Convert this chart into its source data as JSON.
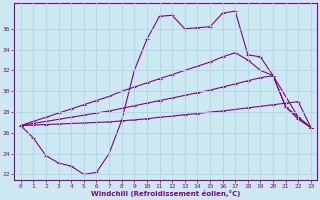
{
  "xlabel": "Windchill (Refroidissement éolien,°C)",
  "bg_color": "#cce8f0",
  "grid_color": "#b0d8e8",
  "line_color": "#880088",
  "xlim": [
    -0.5,
    23.5
  ],
  "ylim": [
    21.5,
    38.5
  ],
  "xticks": [
    0,
    1,
    2,
    3,
    4,
    5,
    6,
    7,
    8,
    9,
    10,
    11,
    12,
    13,
    14,
    15,
    16,
    17,
    18,
    19,
    20,
    21,
    22,
    23
  ],
  "yticks": [
    22,
    24,
    26,
    28,
    30,
    32,
    34,
    36
  ],
  "line_a_x": [
    0,
    1,
    2,
    3,
    4,
    5,
    6,
    7,
    8,
    9,
    10,
    11,
    12,
    13,
    14,
    15,
    16,
    17,
    18,
    19,
    20,
    22,
    23
  ],
  "line_a_y": [
    26.7,
    25.5,
    23.8,
    23.1,
    22.8,
    22.0,
    22.2,
    24.0,
    27.2,
    32.0,
    35.0,
    37.2,
    37.3,
    36.0,
    36.1,
    36.2,
    37.5,
    37.7,
    33.5,
    33.3,
    31.5,
    27.5,
    26.5
  ],
  "line_b_x": [
    0,
    1,
    2,
    3,
    4,
    5,
    6,
    7,
    8,
    9,
    10,
    11,
    12,
    13,
    14,
    15,
    16,
    17,
    18,
    19,
    20,
    21,
    22,
    23
  ],
  "line_b_y": [
    26.7,
    27.1,
    27.5,
    27.9,
    28.3,
    28.7,
    29.1,
    29.5,
    30.0,
    30.4,
    30.8,
    31.2,
    31.6,
    32.0,
    32.4,
    32.8,
    33.3,
    33.7,
    33.0,
    32.0,
    31.5,
    28.5,
    27.5,
    26.5
  ],
  "line_c_x": [
    0,
    1,
    2,
    3,
    4,
    5,
    6,
    7,
    8,
    9,
    10,
    11,
    12,
    13,
    14,
    15,
    16,
    17,
    18,
    19,
    20,
    21,
    22,
    23
  ],
  "line_c_y": [
    26.7,
    26.9,
    27.1,
    27.3,
    27.5,
    27.7,
    27.9,
    28.1,
    28.35,
    28.6,
    28.85,
    29.1,
    29.35,
    29.6,
    29.85,
    30.1,
    30.4,
    30.7,
    31.0,
    31.3,
    31.5,
    28.5,
    27.3,
    26.5
  ],
  "line_d_x": [
    0,
    1,
    2,
    3,
    4,
    5,
    6,
    7,
    8,
    9,
    10,
    11,
    12,
    13,
    14,
    15,
    16,
    17,
    18,
    19,
    20,
    21,
    22,
    23
  ],
  "line_d_y": [
    26.7,
    26.75,
    26.8,
    26.85,
    26.9,
    26.95,
    27.0,
    27.05,
    27.15,
    27.25,
    27.35,
    27.5,
    27.6,
    27.75,
    27.85,
    28.0,
    28.1,
    28.25,
    28.4,
    28.55,
    28.7,
    28.85,
    29.0,
    26.5
  ]
}
